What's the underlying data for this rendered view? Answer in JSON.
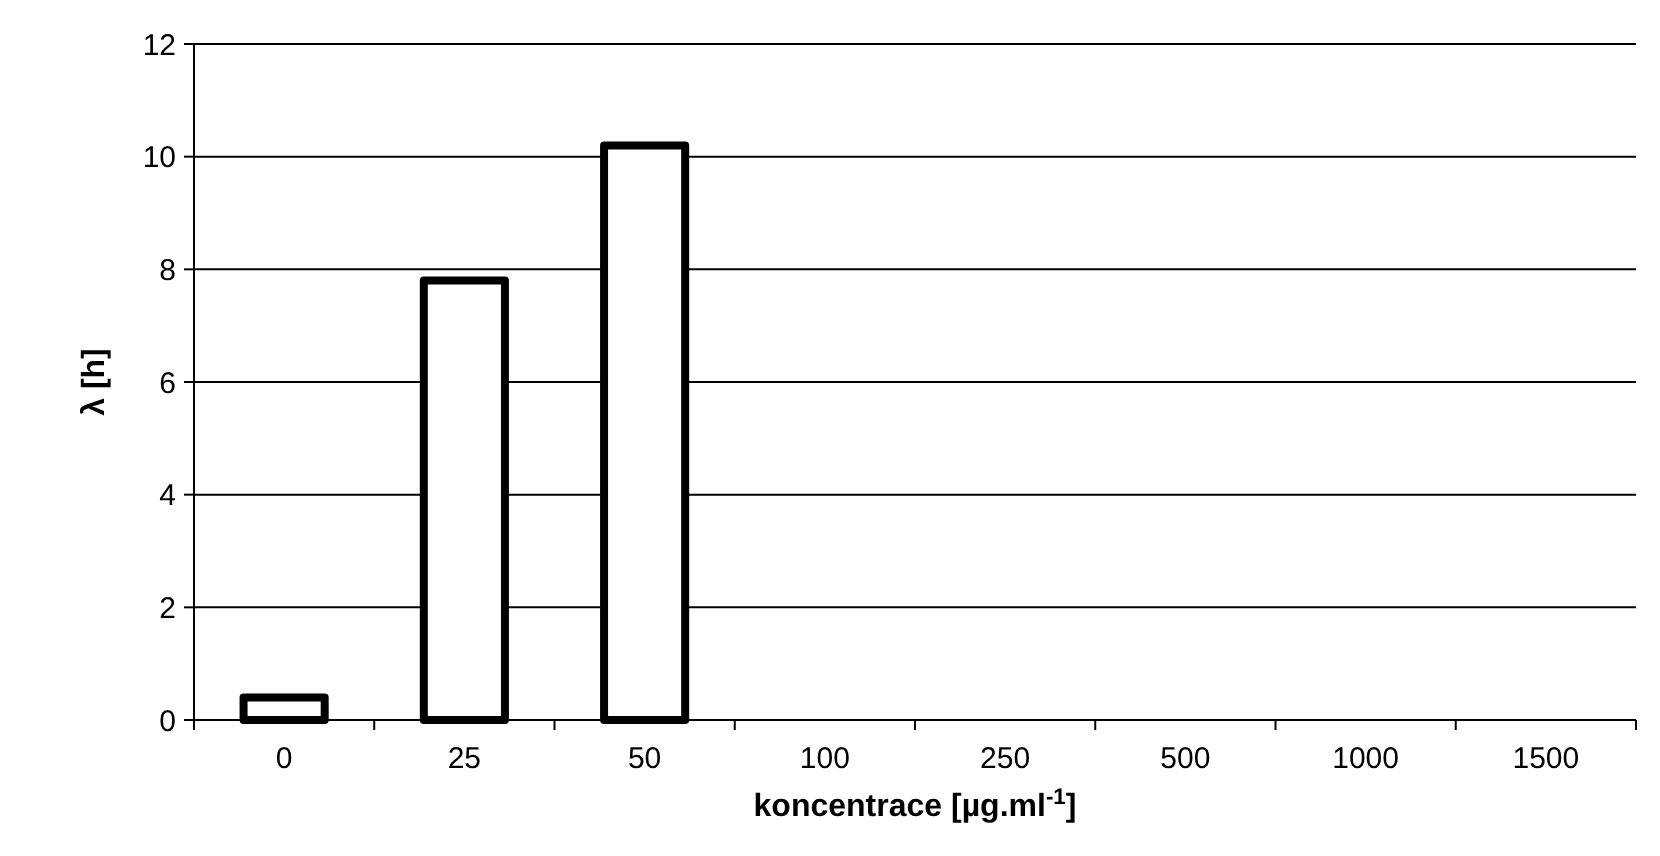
{
  "chart_data": {
    "type": "bar",
    "xlabel": "koncentrace [µg.ml$^{-1}$]",
    "ylabel": "λ [h]",
    "categories": [
      "0",
      "25",
      "50",
      "100",
      "250",
      "500",
      "1000",
      "1500"
    ],
    "values": [
      0.4,
      7.8,
      10.2,
      0,
      0,
      0,
      0,
      0
    ],
    "color": "#ffffff",
    "ylim": [
      0,
      12
    ],
    "yticks": [
      0,
      2,
      4,
      6,
      8,
      10,
      12
    ],
    "grid": "y"
  }
}
